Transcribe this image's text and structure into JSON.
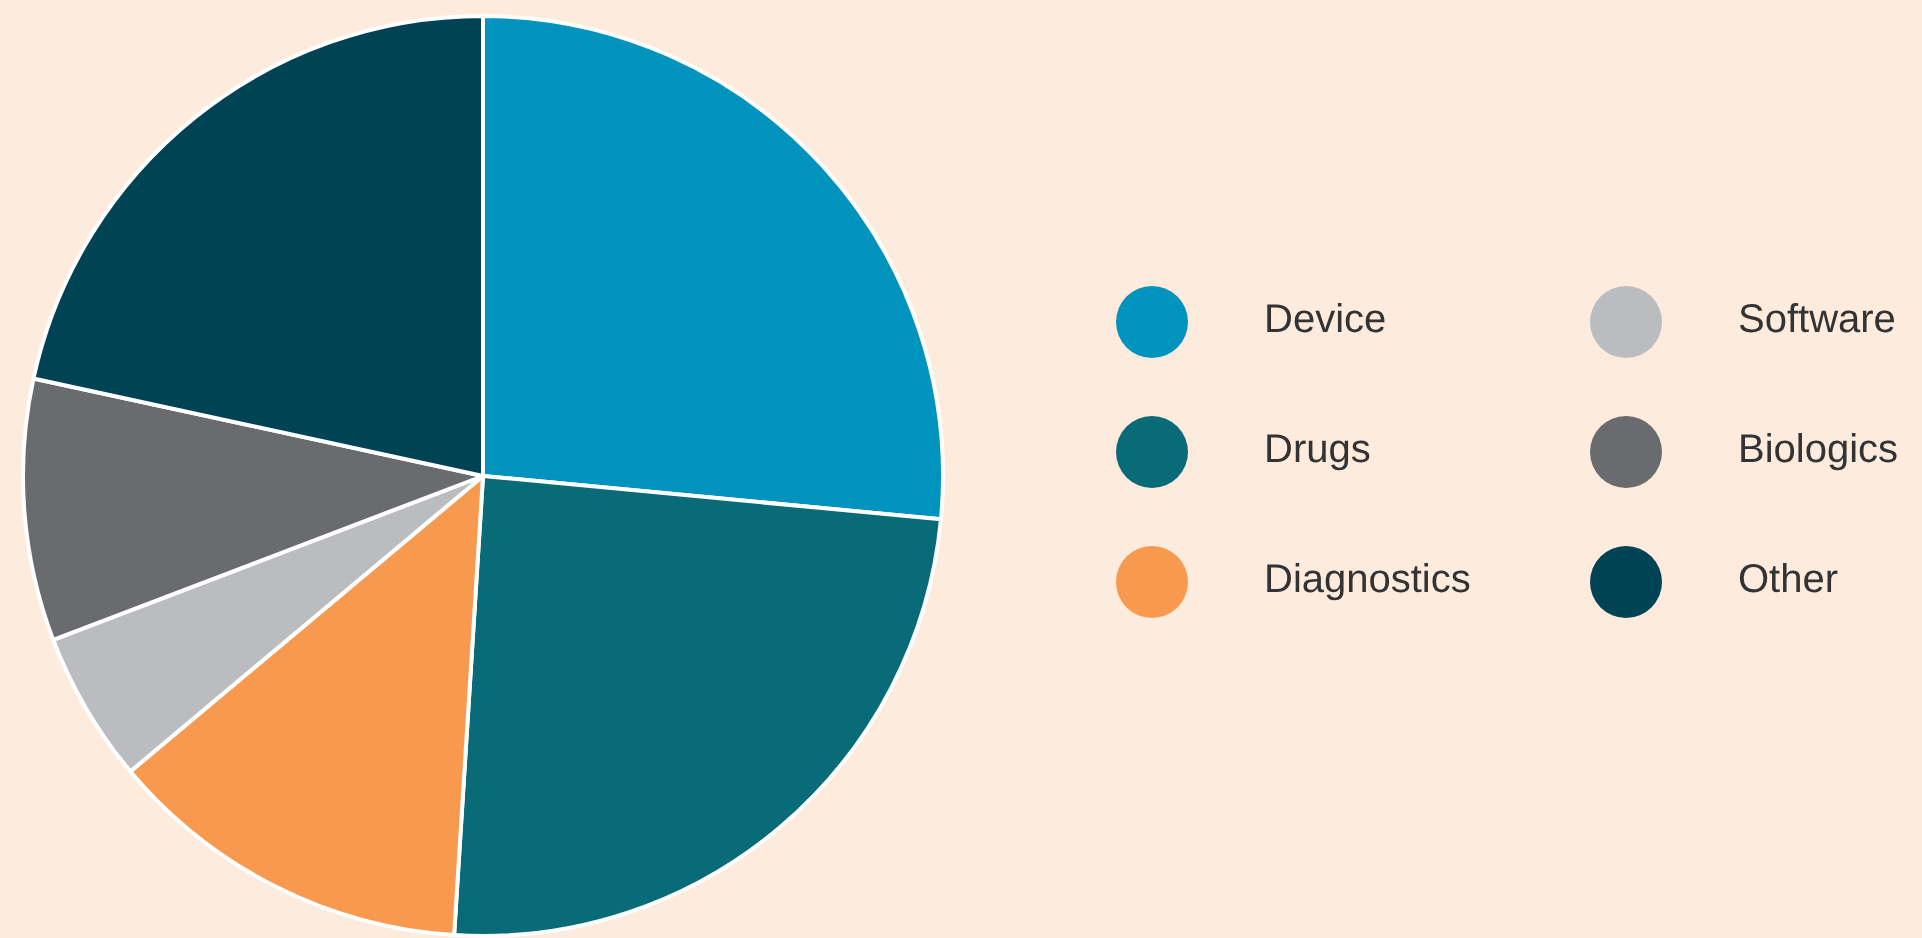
{
  "chart_data": {
    "type": "pie",
    "categories": [
      "Device",
      "Drugs",
      "Diagnostics",
      "Software",
      "Biologics",
      "Other"
    ],
    "values": [
      26.5,
      24.5,
      12.9,
      5.3,
      9.2,
      21.6
    ],
    "colors": [
      "#0093be",
      "#0a6b78",
      "#f7994f",
      "#bbbcc0",
      "#6a6b6e",
      "#004355"
    ],
    "legend": "right"
  }
}
